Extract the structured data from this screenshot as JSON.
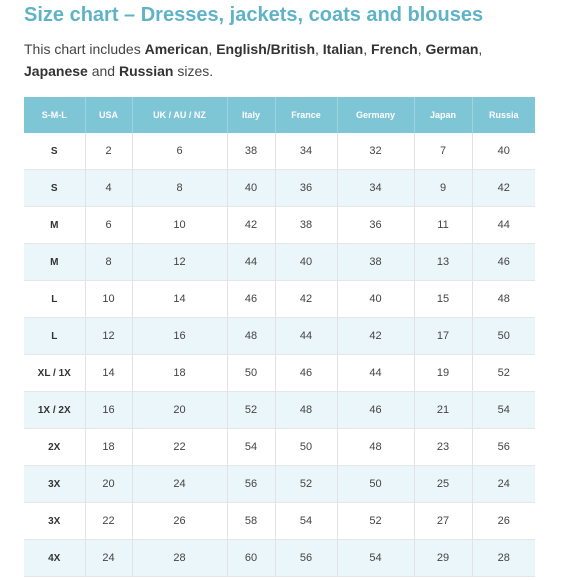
{
  "title": "Size chart – Dresses, jackets, coats and blouses",
  "intro": {
    "prefix": "This chart includes ",
    "sizes": [
      "American",
      "English/British",
      "Italian",
      "French",
      "German",
      "Japanese",
      "Russian"
    ],
    "sep1": ", ",
    "sep2": ", ",
    "sep3": ", ",
    "sep4": ", ",
    "sep5": ", ",
    "and": " and ",
    "suffix": " sizes."
  },
  "table": {
    "headers": [
      "S-M-L",
      "USA",
      "UK / AU / NZ",
      "Italy",
      "France",
      "Germany",
      "Japan",
      "Russia"
    ],
    "rows": [
      [
        "S",
        "2",
        "6",
        "38",
        "34",
        "32",
        "7",
        "40"
      ],
      [
        "S",
        "4",
        "8",
        "40",
        "36",
        "34",
        "9",
        "42"
      ],
      [
        "M",
        "6",
        "10",
        "42",
        "38",
        "36",
        "11",
        "44"
      ],
      [
        "M",
        "8",
        "12",
        "44",
        "40",
        "38",
        "13",
        "46"
      ],
      [
        "L",
        "10",
        "14",
        "46",
        "42",
        "40",
        "15",
        "48"
      ],
      [
        "L",
        "12",
        "16",
        "48",
        "44",
        "42",
        "17",
        "50"
      ],
      [
        "XL / 1X",
        "14",
        "18",
        "50",
        "46",
        "44",
        "19",
        "52"
      ],
      [
        "1X / 2X",
        "16",
        "20",
        "52",
        "48",
        "46",
        "21",
        "54"
      ],
      [
        "2X",
        "18",
        "22",
        "54",
        "50",
        "48",
        "23",
        "56"
      ],
      [
        "3X",
        "20",
        "24",
        "56",
        "52",
        "50",
        "25",
        "24"
      ],
      [
        "3X",
        "22",
        "26",
        "58",
        "54",
        "52",
        "27",
        "26"
      ],
      [
        "4X",
        "24",
        "28",
        "60",
        "56",
        "54",
        "29",
        "28"
      ]
    ]
  },
  "colors": {
    "title": "#5fb3c6",
    "header_bg": "#7ec6d6",
    "stripe_bg": "#eaf6f9"
  }
}
